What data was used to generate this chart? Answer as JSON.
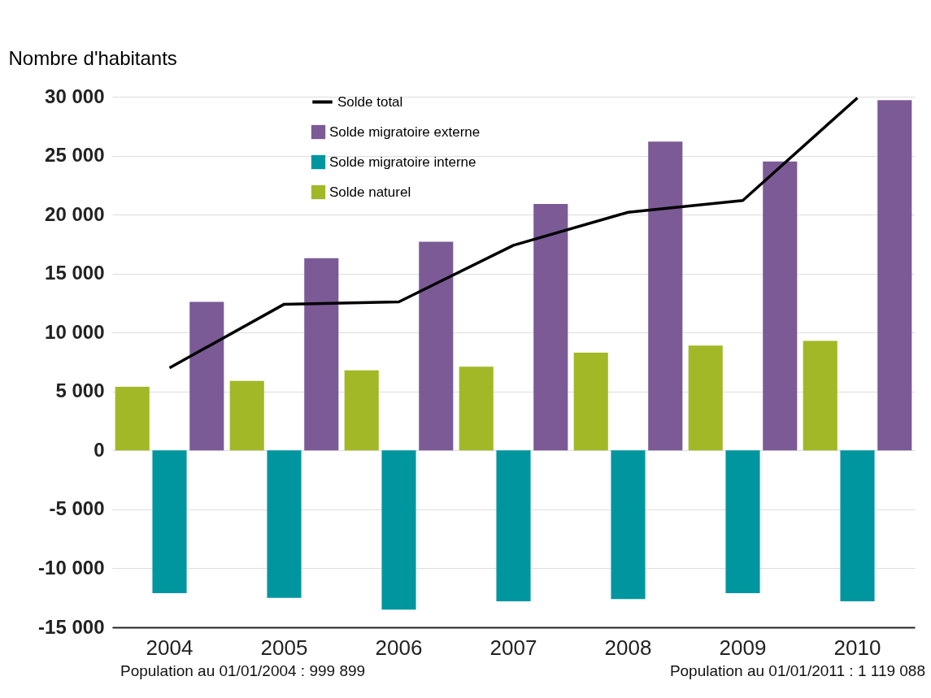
{
  "chart_data": {
    "type": "bar",
    "ylabel": "Nombre d'habitants",
    "categories": [
      "2004",
      "2005",
      "2006",
      "2007",
      "2008",
      "2009",
      "2010"
    ],
    "series": [
      {
        "name": "Solde total",
        "type": "line",
        "color": "#000000",
        "values": [
          7000,
          12400,
          12600,
          17400,
          20200,
          21200,
          29900
        ]
      },
      {
        "name": "Solde migratoire externe",
        "color": "#7b5a96",
        "values": [
          12600,
          16300,
          17700,
          20900,
          26200,
          24500,
          29700
        ]
      },
      {
        "name": "Solde migratoire interne",
        "color": "#00969f",
        "values": [
          -12100,
          -12500,
          -13500,
          -12800,
          -12600,
          -12100,
          -12800
        ]
      },
      {
        "name": "Solde naturel",
        "color": "#a3b826",
        "values": [
          5400,
          5900,
          6800,
          7100,
          8300,
          8900,
          9300
        ]
      }
    ],
    "ylim": [
      -15000,
      30000
    ],
    "yticks": [
      {
        "value": -15000,
        "label": "-15 000"
      },
      {
        "value": -10000,
        "label": "-10 000"
      },
      {
        "value": -5000,
        "label": "-5 000"
      },
      0,
      {
        "value": 5000,
        "label": "5 000"
      },
      {
        "value": 10000,
        "label": "10 000"
      },
      {
        "value": 15000,
        "label": "15 000"
      },
      {
        "value": 20000,
        "label": "20 000"
      },
      {
        "value": 25000,
        "label": "25 000"
      },
      {
        "value": 30000,
        "label": "30 000"
      }
    ],
    "grid": "y",
    "legend": "top left",
    "marker": "none",
    "line_style": "solid",
    "annotations": [
      "Population au 01/01/2004 : 999 899",
      "Population au 01/01/2011 : 1 119 088"
    ]
  }
}
